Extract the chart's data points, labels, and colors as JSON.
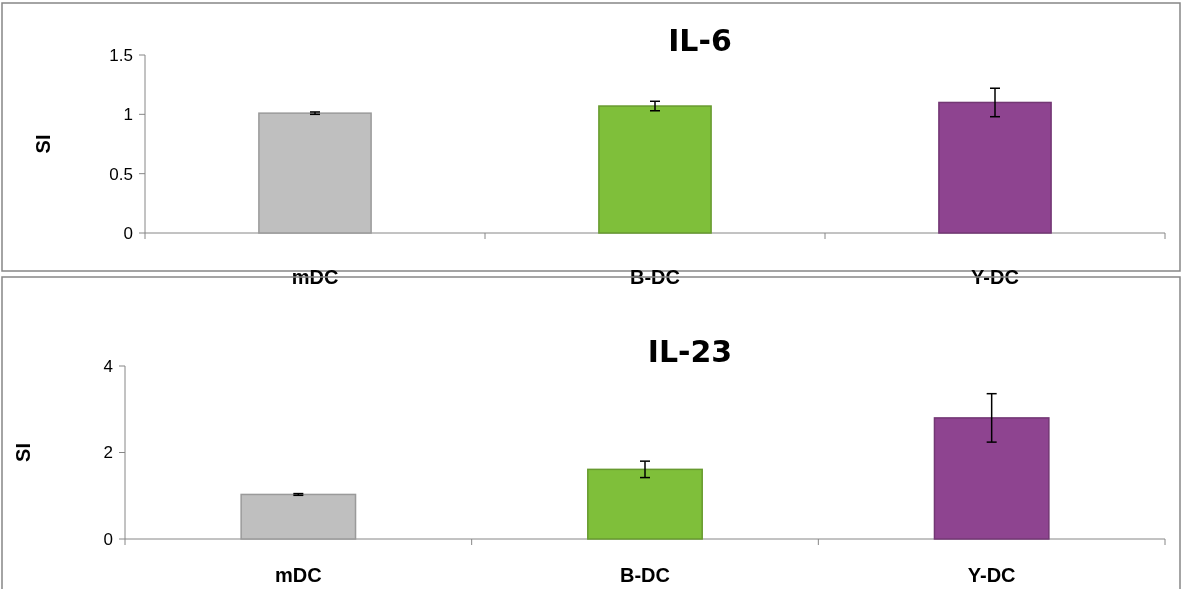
{
  "chart_data": [
    {
      "type": "bar",
      "title": "IL-6",
      "ylabel": "SI",
      "categories": [
        "mDC",
        "B-DC",
        "Y-DC"
      ],
      "values": [
        1.01,
        1.07,
        1.1
      ],
      "errors": [
        0.01,
        0.04,
        0.12
      ],
      "colors": [
        "#bfbfbf",
        "#7fbf3a",
        "#8e4490"
      ],
      "ylim": [
        0,
        1.5
      ],
      "yticks": [
        0,
        0.5,
        1,
        1.5
      ],
      "grid": false
    },
    {
      "type": "bar",
      "title": "IL-23",
      "ylabel": "SI",
      "categories": [
        "mDC",
        "B-DC",
        "Y-DC"
      ],
      "values": [
        1.03,
        1.61,
        2.8
      ],
      "errors": [
        0.02,
        0.19,
        0.56
      ],
      "colors": [
        "#bfbfbf",
        "#7fbf3a",
        "#8e4490"
      ],
      "ylim": [
        0,
        4
      ],
      "yticks": [
        0,
        2,
        4
      ],
      "grid": false
    }
  ]
}
